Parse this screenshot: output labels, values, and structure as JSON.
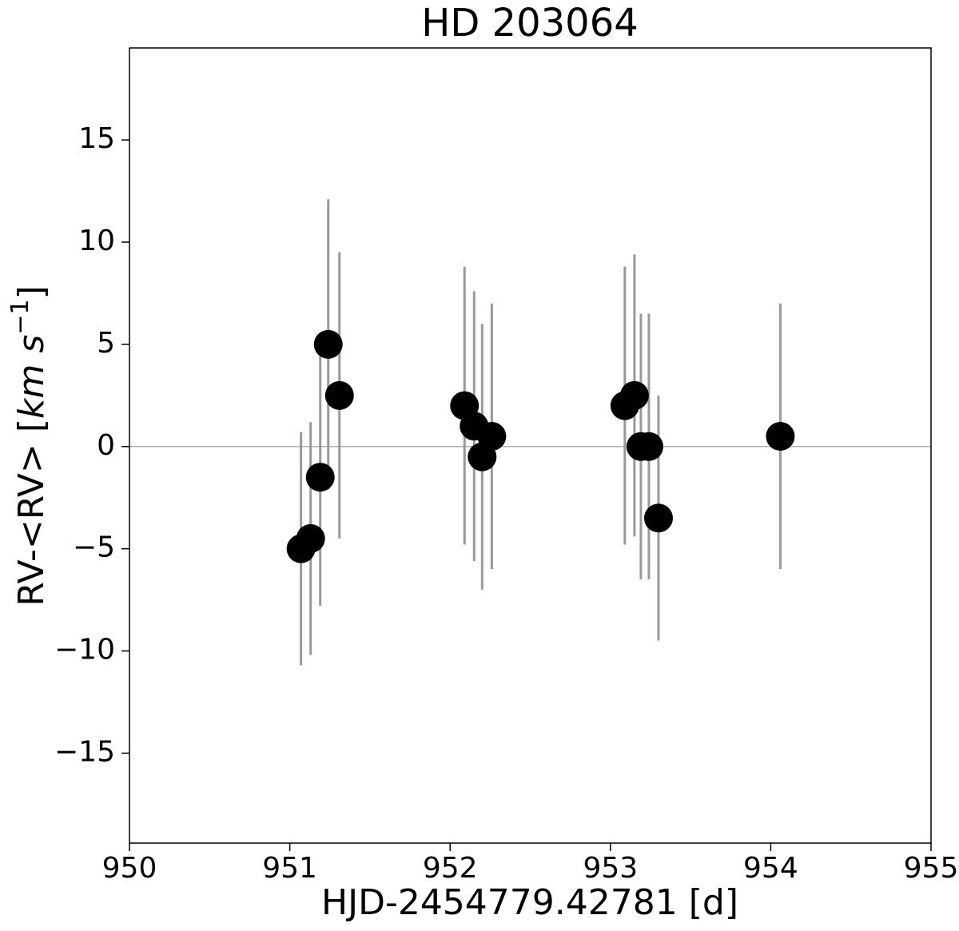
{
  "chart_data": {
    "type": "errorbar",
    "title": "HD 203064",
    "xlabel": "HJD-2454779.42781 [d]",
    "ylabel": {
      "text": "RV-<RV> [",
      "unit": "km s",
      "exponent": "−1",
      "close": "]"
    },
    "x": [
      951.07,
      951.13,
      951.19,
      951.24,
      951.31,
      952.09,
      952.15,
      952.2,
      952.26,
      953.09,
      953.15,
      953.19,
      953.24,
      953.3,
      954.06
    ],
    "values": [
      -5,
      -4.5,
      -1.5,
      5,
      2.5,
      2,
      1,
      -0.5,
      0.5,
      2,
      2.5,
      0,
      0,
      -3.5,
      0.5
    ],
    "errors": [
      5.7,
      5.7,
      6.3,
      7.1,
      7,
      6.8,
      6.6,
      6.5,
      6.5,
      6.8,
      6.9,
      6.5,
      6.5,
      6,
      6.5
    ],
    "marker_color": "#000000",
    "errorbar_color": "#999999",
    "hline": 0,
    "hline_color": "#b0b0b0",
    "xlim": [
      950,
      955
    ],
    "xticks": [
      950,
      951,
      952,
      953,
      954,
      955
    ],
    "ylim": [
      -19.4,
      19.5
    ],
    "yticks": [
      {
        "value": -15,
        "label": "−15"
      },
      {
        "value": -10,
        "label": "−10"
      },
      {
        "value": -5,
        "label": "−5"
      },
      0,
      5,
      10,
      15
    ]
  }
}
